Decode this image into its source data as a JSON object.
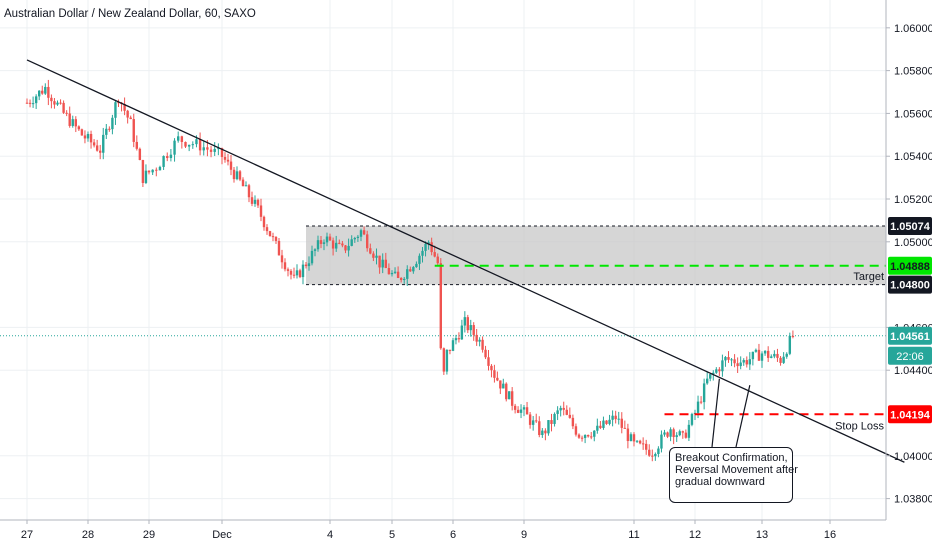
{
  "header": {
    "title": "Australian Dollar / New Zealand Dollar, 60, SAXO"
  },
  "annotations": {
    "callout_lines": [
      "Breakout Confirmation,",
      "Reversal Movement after",
      "gradual downward"
    ],
    "target_label": "Target",
    "stop_label": "Stop Loss",
    "countdown": "22:06"
  },
  "colors": {
    "up": "#26a69a",
    "down": "#ef5350",
    "trend": "#131722",
    "target": "#00e600",
    "stop": "#ff0000",
    "zone": "#c8c8c8",
    "last": "#26a69a"
  },
  "chart_data": {
    "type": "candlestick",
    "symbol": "Australian Dollar / New Zealand Dollar",
    "interval": "60",
    "source": "SAXO",
    "x_ticks": [
      "27",
      "28",
      "29",
      "Dec",
      "4",
      "5",
      "6",
      "9",
      "11",
      "12",
      "13",
      "16"
    ],
    "y_ticks": [
      "1.06000",
      "1.05800",
      "1.05600",
      "1.05400",
      "1.05200",
      "1.05000",
      "1.04600",
      "1.04400",
      "1.04000",
      "1.03800"
    ],
    "ylim": [
      1.037,
      1.0613
    ],
    "price_labels": [
      {
        "value": "1.05074",
        "price": 1.05074,
        "style": "dark"
      },
      {
        "value": "1.04888",
        "price": 1.04888,
        "style": "green"
      },
      {
        "value": "1.04800",
        "price": 1.048,
        "style": "dark"
      },
      {
        "value": "1.04561",
        "price": 1.04561,
        "style": "last"
      },
      {
        "value": "1.04194",
        "price": 1.04194,
        "style": "red"
      }
    ],
    "zone": {
      "top": 1.05074,
      "bottom": 1.048,
      "start_time": 4.4
    },
    "target": {
      "price": 1.04888,
      "start_time": 6.5
    },
    "stop_loss": {
      "price": 1.04194,
      "start_time": 10.3
    },
    "last_price": 1.04561,
    "trendline": {
      "start": [
        0,
        1.0585
      ],
      "end": [
        14.2,
        1.0397
      ]
    },
    "callout_pointers": [
      [
        11.2,
        1.0436
      ],
      [
        11.7,
        1.0433
      ]
    ],
    "price_path_anchors": [
      [
        0,
        1.0565
      ],
      [
        0.3,
        1.0572
      ],
      [
        0.6,
        1.056
      ],
      [
        0.9,
        1.055
      ],
      [
        1.2,
        1.0543
      ],
      [
        1.5,
        1.0568
      ],
      [
        1.7,
        1.0555
      ],
      [
        1.9,
        1.053
      ],
      [
        2.1,
        1.0535
      ],
      [
        2.4,
        1.0548
      ],
      [
        2.7,
        1.0545
      ],
      [
        3.0,
        1.054
      ],
      [
        3.3,
        1.0528
      ],
      [
        3.6,
        1.0515
      ],
      [
        3.9,
        1.0498
      ],
      [
        4.2,
        1.0482
      ],
      [
        4.4,
        1.049
      ],
      [
        4.7,
        1.0502
      ],
      [
        5.0,
        1.0496
      ],
      [
        5.3,
        1.0505
      ],
      [
        5.6,
        1.049
      ],
      [
        5.9,
        1.0482
      ],
      [
        6.2,
        1.0492
      ],
      [
        6.4,
        1.05
      ],
      [
        6.55,
        1.049
      ],
      [
        6.62,
        1.0432
      ],
      [
        6.7,
        1.0448
      ],
      [
        7.0,
        1.0462
      ],
      [
        7.3,
        1.0452
      ],
      [
        7.5,
        1.0438
      ],
      [
        7.8,
        1.0425
      ],
      [
        8.0,
        1.042
      ],
      [
        8.3,
        1.041
      ],
      [
        8.6,
        1.0422
      ],
      [
        8.9,
        1.041
      ],
      [
        9.2,
        1.0412
      ],
      [
        9.5,
        1.0418
      ],
      [
        9.8,
        1.0405
      ],
      [
        10.1,
        1.0402
      ],
      [
        10.4,
        1.0413
      ],
      [
        10.6,
        1.0408
      ],
      [
        10.8,
        1.042
      ],
      [
        11.0,
        1.0435
      ],
      [
        11.3,
        1.0445
      ],
      [
        11.6,
        1.0444
      ],
      [
        11.9,
        1.0448
      ],
      [
        12.2,
        1.0445
      ],
      [
        12.4,
        1.0456
      ]
    ]
  }
}
